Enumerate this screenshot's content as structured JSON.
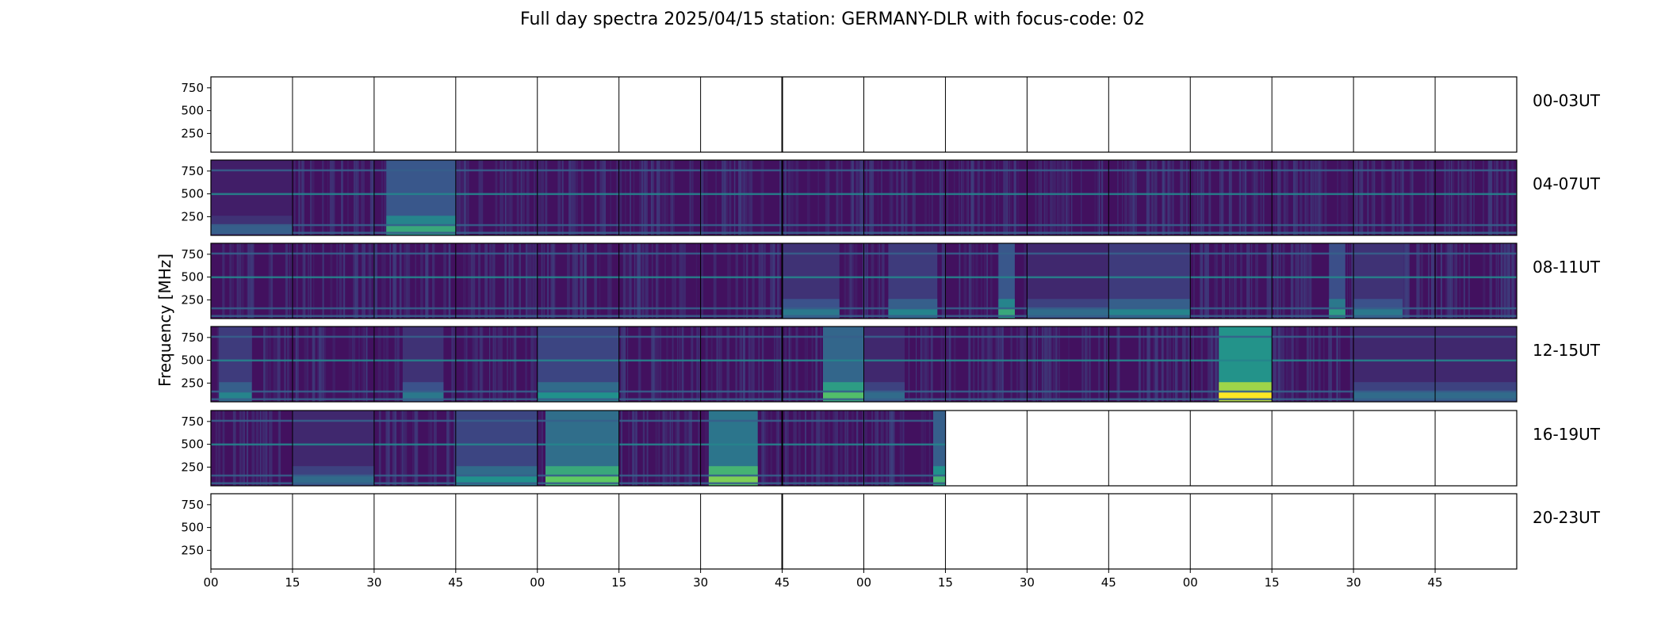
{
  "title": "Full day spectra 2025/04/15 station: GERMANY-DLR with focus-code: 02",
  "chart_data": {
    "type": "heatmap",
    "ylabel": "Frequency [MHz]",
    "ylim": [
      45,
      870
    ],
    "ytick_values": [
      250,
      500,
      750
    ],
    "ytick_labels": [
      "250",
      "500",
      "750"
    ],
    "xtick_labels": [
      "00",
      "15",
      "30",
      "45",
      "00",
      "15",
      "30",
      "45",
      "00",
      "15",
      "30",
      "45",
      "00",
      "15",
      "30",
      "45"
    ],
    "panels_per_row": 16,
    "panel_minutes": 15,
    "rows": [
      {
        "label": "00-03UT",
        "filled": []
      },
      {
        "label": "04-07UT",
        "filled": [
          0,
          1,
          2,
          3,
          4,
          5,
          6,
          7,
          8,
          9,
          10,
          11,
          12,
          13,
          14,
          15
        ],
        "bright_bands": [
          {
            "panel": 2,
            "from": 0.15,
            "to": 1.0,
            "level": 0.45
          },
          {
            "panel": 0,
            "from": 0.0,
            "to": 1.0,
            "level": 0.15
          }
        ]
      },
      {
        "label": "08-11UT",
        "filled": [
          0,
          1,
          2,
          3,
          4,
          5,
          6,
          7,
          8,
          9,
          10,
          11,
          12,
          13,
          14,
          15
        ],
        "bright_bands": [
          {
            "panel": 7,
            "from": 0.0,
            "to": 0.7,
            "level": 0.25
          },
          {
            "panel": 8,
            "from": 0.3,
            "to": 0.9,
            "level": 0.3
          },
          {
            "panel": 9,
            "from": 0.65,
            "to": 0.85,
            "level": 0.45
          },
          {
            "panel": 10,
            "from": 0.0,
            "to": 1.0,
            "level": 0.2
          },
          {
            "panel": 11,
            "from": 0.0,
            "to": 1.0,
            "level": 0.3
          },
          {
            "panel": 13,
            "from": 0.7,
            "to": 0.9,
            "level": 0.4
          },
          {
            "panel": 14,
            "from": 0.0,
            "to": 0.6,
            "level": 0.25
          }
        ]
      },
      {
        "label": "12-15UT",
        "filled": [
          0,
          1,
          2,
          3,
          4,
          5,
          6,
          7,
          8,
          9,
          10,
          11,
          12,
          13,
          14,
          15
        ],
        "bright_bands": [
          {
            "panel": 0,
            "from": 0.1,
            "to": 0.5,
            "level": 0.3
          },
          {
            "panel": 2,
            "from": 0.35,
            "to": 0.85,
            "level": 0.25
          },
          {
            "panel": 4,
            "from": 0.0,
            "to": 1.0,
            "level": 0.35
          },
          {
            "panel": 7,
            "from": 0.5,
            "to": 1.0,
            "level": 0.55
          },
          {
            "panel": 8,
            "from": 0.0,
            "to": 0.5,
            "level": 0.2
          },
          {
            "panel": 12,
            "from": 0.35,
            "to": 1.0,
            "level": 0.85
          },
          {
            "panel": 14,
            "from": 0.0,
            "to": 1.0,
            "level": 0.2
          },
          {
            "panel": 15,
            "from": 0.0,
            "to": 1.0,
            "level": 0.2
          }
        ]
      },
      {
        "label": "16-19UT",
        "filled": [
          0,
          1,
          2,
          3,
          4,
          5,
          6,
          7,
          8
        ],
        "bright_bands": [
          {
            "panel": 1,
            "from": 0.0,
            "to": 1.0,
            "level": 0.2
          },
          {
            "panel": 3,
            "from": 0.0,
            "to": 1.0,
            "level": 0.35
          },
          {
            "panel": 4,
            "from": 0.1,
            "to": 1.0,
            "level": 0.6
          },
          {
            "panel": 6,
            "from": 0.1,
            "to": 0.7,
            "level": 0.65
          },
          {
            "panel": 8,
            "from": 0.85,
            "to": 1.0,
            "level": 0.5
          }
        ]
      },
      {
        "label": "20-23UT",
        "filled": []
      }
    ],
    "horizontal_lines_mhz": [
      75,
      160,
      500,
      760
    ],
    "colormap": [
      "#440154",
      "#3b528b",
      "#21918c",
      "#5ec962",
      "#fde725"
    ],
    "grid": false
  }
}
